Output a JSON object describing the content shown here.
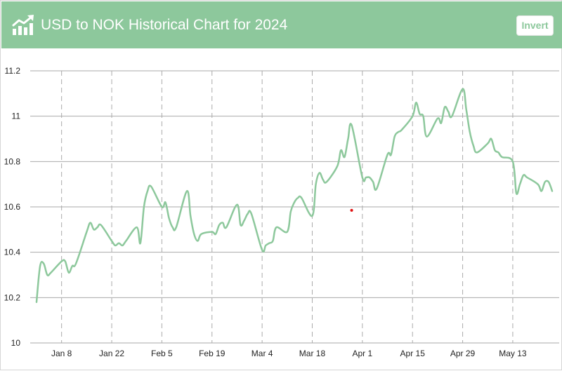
{
  "header": {
    "title": "USD to NOK Historical Chart for 2024",
    "invert_label": "Invert",
    "icon": "chart-trend-up-icon",
    "background_color": "#8dc89c"
  },
  "colors": {
    "line": "#8dc89c",
    "grid": "#aaaaaa",
    "marker": "#e01010"
  },
  "chart_data": {
    "type": "line",
    "title": "USD to NOK Historical Chart for 2024",
    "xlabel": "",
    "ylabel": "",
    "x_start": "2024-01-01",
    "x_end": "2024-05-24",
    "x_tick_labels": [
      "Jan 8",
      "Jan 22",
      "Feb 5",
      "Feb 19",
      "Mar 4",
      "Mar 18",
      "Apr 1",
      "Apr 15",
      "Apr 29",
      "May 13"
    ],
    "x_ticks": [
      "2024-01-08",
      "2024-01-22",
      "2024-02-05",
      "2024-02-19",
      "2024-03-04",
      "2024-03-18",
      "2024-04-01",
      "2024-04-15",
      "2024-04-29",
      "2024-05-13"
    ],
    "ylim": [
      10,
      11.2
    ],
    "y_ticks": [
      10,
      10.2,
      10.4,
      10.6,
      10.8,
      11,
      11.2
    ],
    "y_tick_labels": [
      "10",
      "10.2",
      "10.4",
      "10.6",
      "10.8",
      "11",
      "11.2"
    ],
    "grid": "horizontal solid, vertical dashed",
    "legend": "none",
    "series": [
      {
        "x": [
          "2024-01-01",
          "2024-01-02",
          "2024-01-03",
          "2024-01-04",
          "2024-01-05",
          "2024-01-08",
          "2024-01-09",
          "2024-01-10",
          "2024-01-11",
          "2024-01-12",
          "2024-01-15",
          "2024-01-16",
          "2024-01-17",
          "2024-01-18",
          "2024-01-19",
          "2024-01-22",
          "2024-01-23",
          "2024-01-24",
          "2024-01-25",
          "2024-01-26",
          "2024-01-29",
          "2024-01-30",
          "2024-01-31",
          "2024-02-01",
          "2024-02-02",
          "2024-02-05",
          "2024-02-06",
          "2024-02-07",
          "2024-02-08",
          "2024-02-09",
          "2024-02-12",
          "2024-02-13",
          "2024-02-14",
          "2024-02-15",
          "2024-02-16",
          "2024-02-19",
          "2024-02-20",
          "2024-02-21",
          "2024-02-22",
          "2024-02-23",
          "2024-02-26",
          "2024-02-27",
          "2024-02-28",
          "2024-02-29",
          "2024-03-01",
          "2024-03-04",
          "2024-03-05",
          "2024-03-06",
          "2024-03-07",
          "2024-03-08",
          "2024-03-11",
          "2024-03-12",
          "2024-03-13",
          "2024-03-14",
          "2024-03-15",
          "2024-03-18",
          "2024-03-19",
          "2024-03-20",
          "2024-03-21",
          "2024-03-22",
          "2024-03-25",
          "2024-03-26",
          "2024-03-27",
          "2024-03-28",
          "2024-03-29",
          "2024-04-01",
          "2024-04-02",
          "2024-04-03",
          "2024-04-04",
          "2024-04-05",
          "2024-04-08",
          "2024-04-09",
          "2024-04-10",
          "2024-04-11",
          "2024-04-12",
          "2024-04-15",
          "2024-04-16",
          "2024-04-17",
          "2024-04-18",
          "2024-04-19",
          "2024-04-22",
          "2024-04-23",
          "2024-04-24",
          "2024-04-25",
          "2024-04-26",
          "2024-04-29",
          "2024-04-30",
          "2024-05-01",
          "2024-05-02",
          "2024-05-03",
          "2024-05-06",
          "2024-05-07",
          "2024-05-08",
          "2024-05-09",
          "2024-05-10",
          "2024-05-13",
          "2024-05-14",
          "2024-05-15",
          "2024-05-16",
          "2024-05-17",
          "2024-05-20",
          "2024-05-21",
          "2024-05-22",
          "2024-05-23",
          "2024-05-24"
        ],
        "values": [
          10.18,
          10.34,
          10.35,
          10.3,
          10.31,
          10.36,
          10.36,
          10.31,
          10.34,
          10.35,
          10.49,
          10.53,
          10.5,
          10.51,
          10.52,
          10.45,
          10.43,
          10.44,
          10.43,
          10.45,
          10.51,
          10.44,
          10.6,
          10.67,
          10.69,
          10.6,
          10.62,
          10.55,
          10.51,
          10.51,
          10.67,
          10.56,
          10.48,
          10.45,
          10.48,
          10.49,
          10.48,
          10.52,
          10.53,
          10.51,
          10.61,
          10.52,
          10.54,
          10.57,
          10.57,
          10.41,
          10.43,
          10.44,
          10.45,
          10.51,
          10.49,
          10.58,
          10.62,
          10.64,
          10.64,
          10.56,
          10.7,
          10.75,
          10.72,
          10.71,
          10.78,
          10.85,
          10.82,
          10.9,
          10.96,
          10.73,
          10.73,
          10.73,
          10.71,
          10.68,
          10.83,
          10.83,
          10.91,
          10.93,
          10.94,
          11.0,
          11.06,
          11.01,
          11.0,
          10.91,
          10.99,
          10.97,
          11.04,
          11.02,
          11.0,
          11.12,
          11.03,
          10.93,
          10.87,
          10.84,
          10.88,
          10.9,
          10.85,
          10.84,
          10.82,
          10.8,
          10.66,
          10.7,
          10.74,
          10.73,
          10.7,
          10.67,
          10.71,
          10.71,
          10.67
        ]
      }
    ],
    "marker_point": {
      "x": "2024-03-29",
      "y": 10.585
    }
  }
}
